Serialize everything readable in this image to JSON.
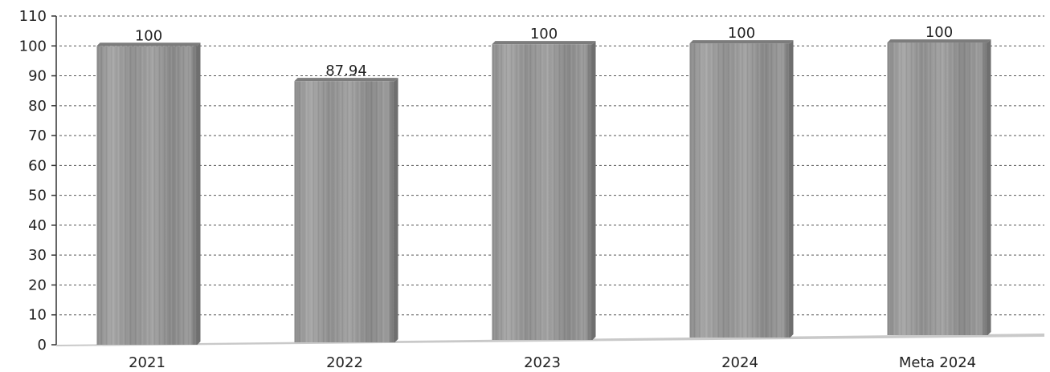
{
  "chart_data": {
    "type": "bar",
    "title": "",
    "xlabel": "",
    "ylabel": "",
    "categories": [
      "2021",
      "2022",
      "2023",
      "2024",
      "Meta 2024"
    ],
    "values": [
      100,
      87.94,
      100,
      100,
      100
    ],
    "data_labels": [
      "100",
      "87.94",
      "100",
      "100",
      "100"
    ],
    "ylim": [
      0,
      110
    ],
    "yticks": [
      0,
      10,
      20,
      30,
      40,
      50,
      60,
      70,
      80,
      90,
      100,
      110
    ],
    "grid": true,
    "legend": "none",
    "colors": {
      "bar": "#9a9a9a",
      "bar_dark": "#6f6f6f",
      "bar_top": "#7c7c7c",
      "grid": "#555555"
    }
  }
}
